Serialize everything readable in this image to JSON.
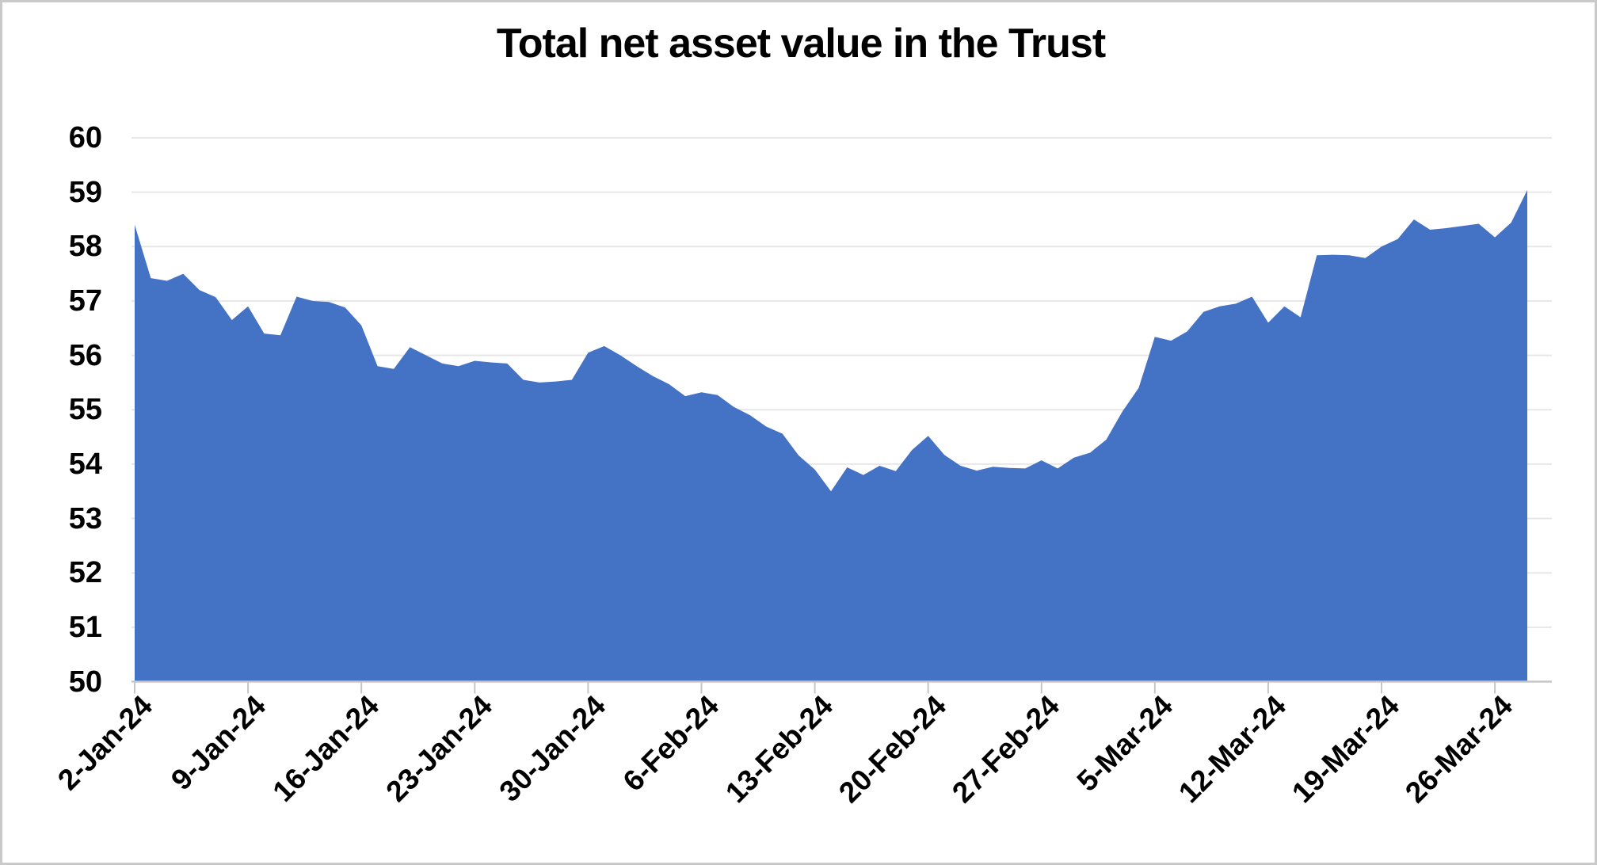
{
  "chart_data": {
    "type": "area",
    "title": "Total net asset value in the Trust",
    "series_name": "Total net asset value",
    "xlabel": "",
    "ylabel": "",
    "ylim": [
      50,
      60
    ],
    "grid": "horizontal",
    "legend": "none",
    "area_color": "#4472C4",
    "gridline_color": "#E7E7E7",
    "axis_line_color": "#C6C6C6",
    "tick_color": "#C6C6C6",
    "text_color": "#000000",
    "background_color": "#FFFFFF",
    "frame_color": "#C9C9C9",
    "y_tick_labels": [
      "60",
      "59",
      "58",
      "57",
      "56",
      "55",
      "54",
      "53",
      "52",
      "51",
      "50"
    ],
    "x_tick_labels": [
      "2-Jan-24",
      "9-Jan-24",
      "16-Jan-24",
      "23-Jan-24",
      "30-Jan-24",
      "6-Feb-24",
      "13-Feb-24",
      "20-Feb-24",
      "27-Feb-24",
      "5-Mar-24",
      "12-Mar-24",
      "19-Mar-24",
      "26-Mar-24"
    ],
    "x_tick_interval_days": 7,
    "dates": [
      "2-Jan-24",
      "3-Jan-24",
      "4-Jan-24",
      "5-Jan-24",
      "6-Jan-24",
      "7-Jan-24",
      "8-Jan-24",
      "9-Jan-24",
      "10-Jan-24",
      "11-Jan-24",
      "12-Jan-24",
      "13-Jan-24",
      "14-Jan-24",
      "15-Jan-24",
      "16-Jan-24",
      "17-Jan-24",
      "18-Jan-24",
      "19-Jan-24",
      "20-Jan-24",
      "21-Jan-24",
      "22-Jan-24",
      "23-Jan-24",
      "24-Jan-24",
      "25-Jan-24",
      "26-Jan-24",
      "27-Jan-24",
      "28-Jan-24",
      "29-Jan-24",
      "30-Jan-24",
      "31-Jan-24",
      "1-Feb-24",
      "2-Feb-24",
      "3-Feb-24",
      "4-Feb-24",
      "5-Feb-24",
      "6-Feb-24",
      "7-Feb-24",
      "8-Feb-24",
      "9-Feb-24",
      "10-Feb-24",
      "11-Feb-24",
      "12-Feb-24",
      "13-Feb-24",
      "14-Feb-24",
      "15-Feb-24",
      "16-Feb-24",
      "17-Feb-24",
      "18-Feb-24",
      "19-Feb-24",
      "20-Feb-24",
      "21-Feb-24",
      "22-Feb-24",
      "23-Feb-24",
      "24-Feb-24",
      "25-Feb-24",
      "26-Feb-24",
      "27-Feb-24",
      "28-Feb-24",
      "29-Feb-24",
      "1-Mar-24",
      "2-Mar-24",
      "3-Mar-24",
      "4-Mar-24",
      "5-Mar-24",
      "6-Mar-24",
      "7-Mar-24",
      "8-Mar-24",
      "9-Mar-24",
      "10-Mar-24",
      "11-Mar-24",
      "12-Mar-24",
      "13-Mar-24",
      "14-Mar-24",
      "15-Mar-24",
      "16-Mar-24",
      "17-Mar-24",
      "18-Mar-24",
      "19-Mar-24",
      "20-Mar-24",
      "21-Mar-24",
      "22-Mar-24",
      "23-Mar-24",
      "24-Mar-24",
      "25-Mar-24",
      "26-Mar-24",
      "27-Mar-24",
      "28-Mar-24"
    ],
    "values": [
      58.4,
      57.42,
      57.37,
      57.5,
      57.2,
      57.07,
      56.65,
      56.9,
      56.4,
      56.37,
      57.08,
      57.0,
      56.98,
      56.88,
      56.55,
      55.8,
      55.75,
      56.15,
      56.0,
      55.85,
      55.8,
      55.9,
      55.87,
      55.85,
      55.55,
      55.5,
      55.52,
      55.55,
      56.05,
      56.17,
      56.0,
      55.8,
      55.62,
      55.47,
      55.25,
      55.32,
      55.27,
      55.05,
      54.9,
      54.69,
      54.56,
      54.16,
      53.9,
      53.5,
      53.94,
      53.8,
      53.97,
      53.87,
      54.26,
      54.52,
      54.17,
      53.97,
      53.88,
      53.95,
      53.93,
      53.92,
      54.07,
      53.92,
      54.12,
      54.21,
      54.45,
      54.97,
      55.4,
      56.34,
      56.27,
      56.44,
      56.8,
      56.9,
      56.95,
      57.08,
      56.6,
      56.9,
      56.7,
      57.84,
      57.85,
      57.84,
      57.79,
      58.0,
      58.14,
      58.5,
      58.31,
      58.34,
      58.38,
      58.42,
      58.17,
      58.44,
      59.04
    ]
  }
}
